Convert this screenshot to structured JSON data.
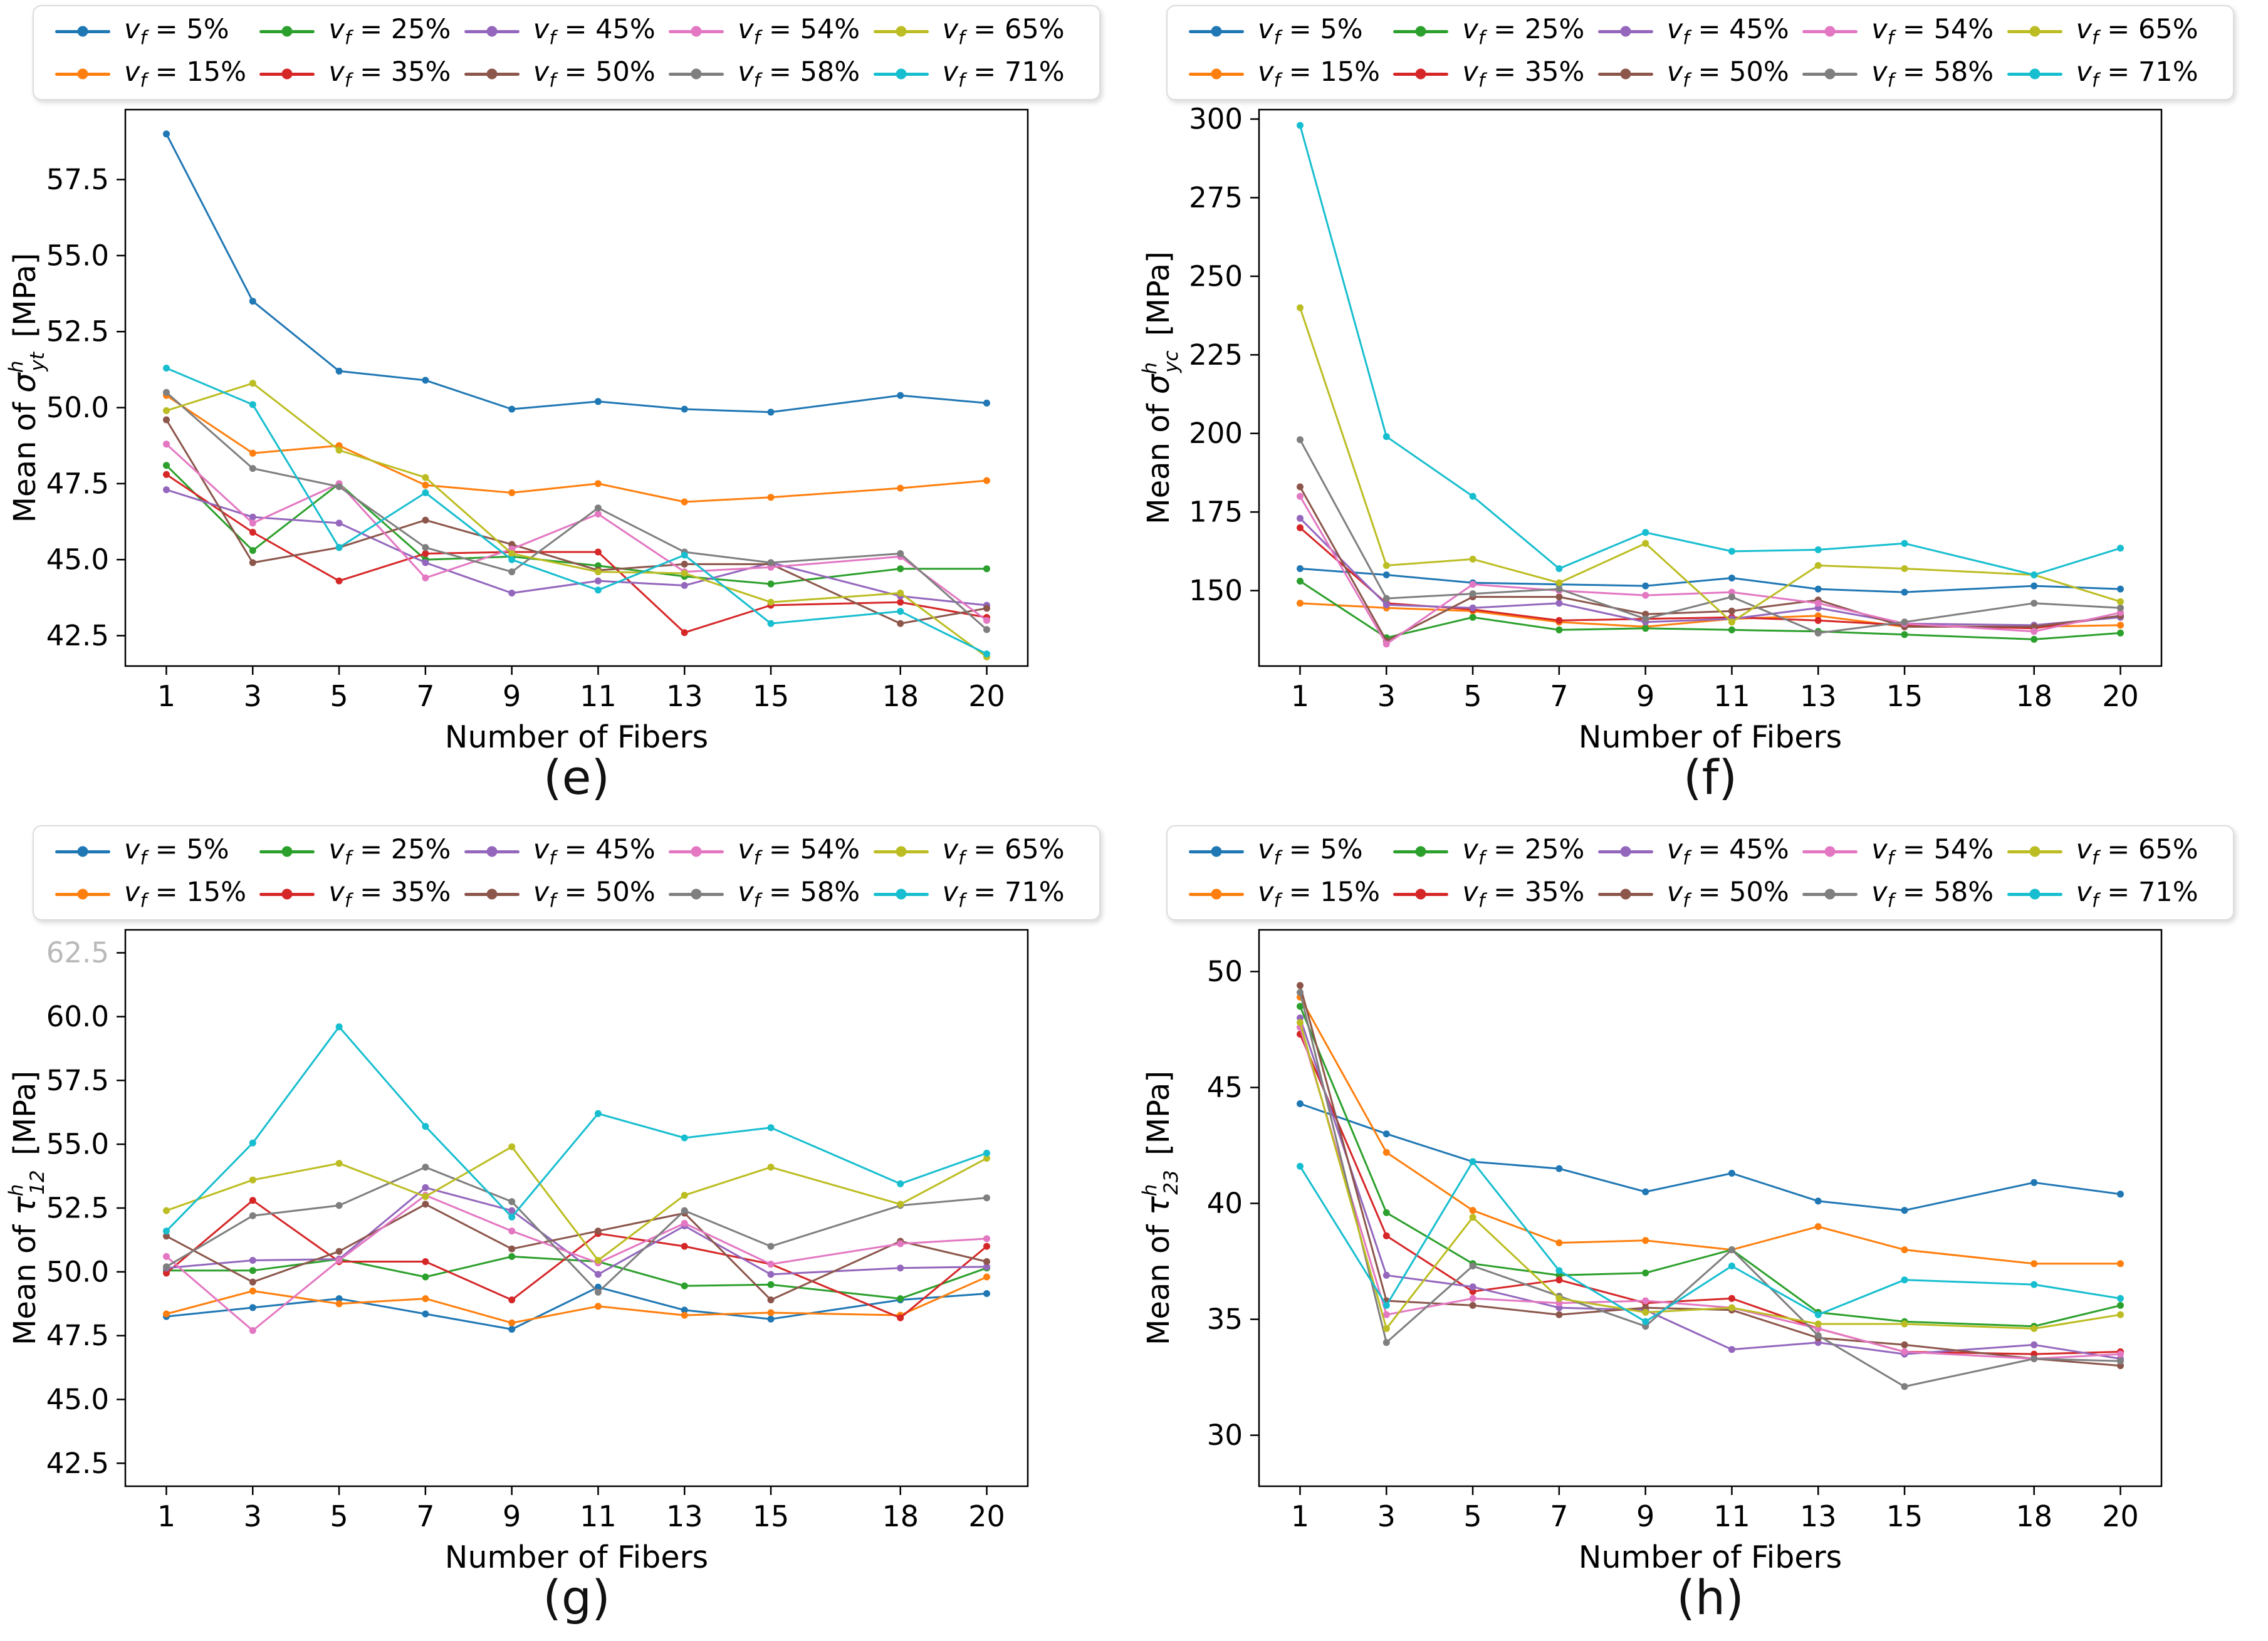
{
  "chart_data": {
    "type": "line",
    "x_label": "Number of Fibers",
    "x_values": [
      1,
      3,
      5,
      7,
      9,
      11,
      13,
      15,
      18,
      20
    ],
    "grid": false,
    "legend": {
      "position": "top",
      "marker": "line-with-dot",
      "entries": [
        {
          "label": "vf = 5%",
          "value": "5%",
          "color": "#1f77b4"
        },
        {
          "label": "vf = 15%",
          "value": "15%",
          "color": "#ff7f0e"
        },
        {
          "label": "vf = 25%",
          "value": "25%",
          "color": "#2ca02c"
        },
        {
          "label": "vf = 35%",
          "value": "35%",
          "color": "#d62728"
        },
        {
          "label": "vf = 45%",
          "value": "45%",
          "color": "#9467bd"
        },
        {
          "label": "vf = 50%",
          "value": "50%",
          "color": "#8c564b"
        },
        {
          "label": "vf = 54%",
          "value": "54%",
          "color": "#e377c2"
        },
        {
          "label": "vf = 58%",
          "value": "58%",
          "color": "#7f7f7f"
        },
        {
          "label": "vf = 65%",
          "value": "65%",
          "color": "#bcbd22"
        },
        {
          "label": "vf = 71%",
          "value": "71%",
          "color": "#17becf"
        }
      ]
    },
    "panels": [
      {
        "id": "e",
        "caption": "(e)",
        "ylabel": {
          "prefix": "Mean of ",
          "symbol": "σ",
          "sup": "h",
          "sub": "yt",
          "unit": " [MPa]"
        },
        "ylim": [
          41.5,
          59.8
        ],
        "yticks": [
          "42.5",
          "45.0",
          "47.5",
          "50.0",
          "52.5",
          "55.0",
          "57.5"
        ],
        "faded_yticks": [],
        "series": [
          {
            "name": "vf = 5%",
            "values": [
              59.0,
              53.5,
              51.2,
              50.9,
              49.95,
              50.2,
              49.95,
              49.85,
              50.4,
              50.15
            ]
          },
          {
            "name": "vf = 15%",
            "values": [
              50.4,
              48.5,
              48.75,
              47.45,
              47.2,
              47.5,
              46.9,
              47.05,
              47.35,
              47.6
            ]
          },
          {
            "name": "vf = 25%",
            "values": [
              48.1,
              45.3,
              47.5,
              45.0,
              45.1,
              44.8,
              44.45,
              44.2,
              44.7,
              44.7
            ]
          },
          {
            "name": "vf = 35%",
            "values": [
              47.8,
              45.9,
              44.3,
              45.2,
              45.25,
              45.25,
              42.6,
              43.5,
              43.6,
              43.1
            ]
          },
          {
            "name": "vf = 45%",
            "values": [
              47.3,
              46.4,
              46.2,
              44.9,
              43.9,
              44.3,
              44.15,
              44.9,
              43.8,
              43.5
            ]
          },
          {
            "name": "vf = 50%",
            "values": [
              49.6,
              44.9,
              45.4,
              46.3,
              45.5,
              44.65,
              44.85,
              44.85,
              42.9,
              43.4
            ]
          },
          {
            "name": "vf = 54%",
            "values": [
              48.8,
              46.2,
              47.5,
              44.4,
              45.35,
              46.5,
              44.6,
              44.75,
              45.1,
              43.0
            ]
          },
          {
            "name": "vf = 58%",
            "values": [
              50.5,
              48.0,
              47.4,
              45.4,
              44.6,
              46.7,
              45.25,
              44.9,
              45.2,
              42.7
            ]
          },
          {
            "name": "vf = 65%",
            "values": [
              49.9,
              50.8,
              48.6,
              47.7,
              45.2,
              44.6,
              44.55,
              43.6,
              43.9,
              41.8
            ]
          },
          {
            "name": "vf = 71%",
            "values": [
              51.3,
              50.1,
              45.4,
              47.2,
              45.0,
              44.0,
              45.15,
              42.9,
              43.3,
              41.9
            ]
          }
        ]
      },
      {
        "id": "f",
        "caption": "(f)",
        "ylabel": {
          "prefix": "Mean of ",
          "symbol": "σ",
          "sup": "h",
          "sub": "yc",
          "unit": " [MPa]"
        },
        "ylim": [
          126,
          303
        ],
        "yticks": [
          "150",
          "175",
          "200",
          "225",
          "250",
          "275",
          "300"
        ],
        "faded_yticks": [],
        "series": [
          {
            "name": "vf = 5%",
            "values": [
              157,
              155,
              152.5,
              152,
              151.5,
              154,
              150.5,
              149.5,
              151.5,
              150.5
            ]
          },
          {
            "name": "vf = 15%",
            "values": [
              146,
              144.5,
              143.5,
              140,
              138.5,
              141,
              142,
              138.5,
              138.5,
              139
            ]
          },
          {
            "name": "vf = 25%",
            "values": [
              153,
              135,
              141.5,
              137.5,
              138,
              137.5,
              137,
              136,
              134.5,
              136.5
            ]
          },
          {
            "name": "vf = 35%",
            "values": [
              170,
              146,
              144,
              140.5,
              141,
              141.5,
              140.5,
              139,
              138,
              142
            ]
          },
          {
            "name": "vf = 45%",
            "values": [
              173,
              145.5,
              144.5,
              146,
              140,
              141,
              144.5,
              139.5,
              139,
              141.5
            ]
          },
          {
            "name": "vf = 50%",
            "values": [
              183,
              134,
              148,
              148,
              142.5,
              143.5,
              147,
              138.5,
              138.5,
              142
            ]
          },
          {
            "name": "vf = 54%",
            "values": [
              180,
              133,
              152,
              150,
              148.5,
              149.5,
              146,
              139.5,
              137,
              143
            ]
          },
          {
            "name": "vf = 58%",
            "values": [
              198,
              147.5,
              149,
              150.5,
              141,
              148,
              136.5,
              140,
              146,
              144.5
            ]
          },
          {
            "name": "vf = 65%",
            "values": [
              240,
              158,
              160,
              152.5,
              165,
              140,
              158,
              157,
              155,
              146.5
            ]
          },
          {
            "name": "vf = 71%",
            "values": [
              298,
              199,
              180,
              157,
              168.5,
              162.5,
              163,
              165,
              155,
              163.5
            ]
          }
        ]
      },
      {
        "id": "g",
        "caption": "(g)",
        "ylabel": {
          "prefix": "Mean of ",
          "symbol": "τ",
          "sup": "h",
          "sub": "12",
          "unit": " [MPa]"
        },
        "ylim": [
          41.6,
          63.4
        ],
        "yticks": [
          "42.5",
          "45.0",
          "47.5",
          "50.0",
          "52.5",
          "55.0",
          "57.5",
          "60.0",
          "62.5"
        ],
        "faded_yticks": [
          "62.5"
        ],
        "series": [
          {
            "name": "vf = 5%",
            "values": [
              48.25,
              48.6,
              48.95,
              48.35,
              47.75,
              49.4,
              48.5,
              48.15,
              48.9,
              49.15
            ]
          },
          {
            "name": "vf = 15%",
            "values": [
              48.35,
              49.25,
              48.75,
              48.95,
              48.0,
              48.65,
              48.3,
              48.4,
              48.3,
              49.8
            ]
          },
          {
            "name": "vf = 25%",
            "values": [
              50.05,
              50.05,
              50.5,
              49.8,
              50.6,
              50.4,
              49.45,
              49.5,
              48.95,
              50.15
            ]
          },
          {
            "name": "vf = 35%",
            "values": [
              49.95,
              52.8,
              50.4,
              50.4,
              48.9,
              51.5,
              51.0,
              50.3,
              48.2,
              51.0
            ]
          },
          {
            "name": "vf = 45%",
            "values": [
              50.15,
              50.45,
              50.5,
              53.3,
              52.4,
              49.9,
              51.8,
              49.9,
              50.15,
              50.2
            ]
          },
          {
            "name": "vf = 50%",
            "values": [
              51.4,
              49.6,
              50.8,
              52.65,
              50.9,
              51.6,
              52.3,
              48.9,
              51.2,
              50.4
            ]
          },
          {
            "name": "vf = 54%",
            "values": [
              50.6,
              47.7,
              50.45,
              53.0,
              51.6,
              50.35,
              51.9,
              50.3,
              51.1,
              51.3
            ]
          },
          {
            "name": "vf = 58%",
            "values": [
              50.2,
              52.2,
              52.6,
              54.1,
              52.75,
              49.2,
              52.4,
              51.0,
              52.6,
              52.9
            ]
          },
          {
            "name": "vf = 65%",
            "values": [
              52.4,
              53.6,
              54.25,
              52.95,
              54.9,
              50.45,
              53.0,
              54.1,
              52.65,
              54.45
            ]
          },
          {
            "name": "vf = 71%",
            "values": [
              51.6,
              55.05,
              59.6,
              55.7,
              52.15,
              56.2,
              55.25,
              55.65,
              53.45,
              54.65
            ]
          }
        ]
      },
      {
        "id": "h",
        "caption": "(h)",
        "ylabel": {
          "prefix": "Mean of ",
          "symbol": "τ",
          "sup": "h",
          "sub": "23",
          "unit": " [MPa]"
        },
        "ylim": [
          27.8,
          51.8
        ],
        "yticks": [
          "30",
          "35",
          "40",
          "45",
          "50"
        ],
        "faded_yticks": [],
        "series": [
          {
            "name": "vf = 5%",
            "values": [
              44.3,
              43.0,
              41.8,
              41.5,
              40.5,
              41.3,
              40.1,
              39.7,
              40.9,
              40.4
            ]
          },
          {
            "name": "vf = 15%",
            "values": [
              48.9,
              42.2,
              39.7,
              38.3,
              38.4,
              38.0,
              39.0,
              38.0,
              37.4,
              37.4
            ]
          },
          {
            "name": "vf = 25%",
            "values": [
              48.5,
              39.6,
              37.4,
              36.9,
              37.0,
              38.0,
              35.3,
              34.9,
              34.7,
              35.6
            ]
          },
          {
            "name": "vf = 35%",
            "values": [
              47.3,
              38.6,
              36.2,
              36.7,
              35.7,
              35.9,
              34.6,
              33.6,
              33.5,
              33.6
            ]
          },
          {
            "name": "vf = 45%",
            "values": [
              48.0,
              36.9,
              36.4,
              35.5,
              35.4,
              33.7,
              34.0,
              33.5,
              33.9,
              33.3
            ]
          },
          {
            "name": "vf = 50%",
            "values": [
              49.4,
              35.8,
              35.6,
              35.2,
              35.5,
              35.4,
              34.2,
              33.9,
              33.3,
              33.0
            ]
          },
          {
            "name": "vf = 54%",
            "values": [
              47.6,
              35.2,
              35.9,
              35.7,
              35.8,
              35.5,
              34.6,
              33.6,
              33.3,
              33.5
            ]
          },
          {
            "name": "vf = 58%",
            "values": [
              49.1,
              34.0,
              37.3,
              36.0,
              34.7,
              38.0,
              34.3,
              32.1,
              33.3,
              33.2
            ]
          },
          {
            "name": "vf = 65%",
            "values": [
              47.8,
              34.6,
              39.4,
              35.9,
              35.3,
              35.5,
              34.8,
              34.8,
              34.6,
              35.2
            ]
          },
          {
            "name": "vf = 71%",
            "values": [
              41.6,
              35.6,
              41.8,
              37.1,
              34.9,
              37.3,
              35.2,
              36.7,
              36.5,
              35.9
            ]
          }
        ]
      }
    ]
  }
}
